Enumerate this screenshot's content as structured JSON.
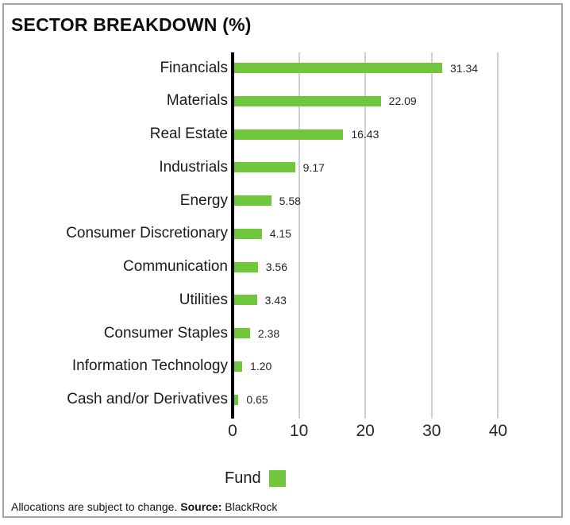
{
  "title": "SECTOR BREAKDOWN (%)",
  "chart_data": {
    "type": "bar",
    "orientation": "horizontal",
    "title": "SECTOR BREAKDOWN (%)",
    "categories": [
      "Financials",
      "Materials",
      "Real Estate",
      "Industrials",
      "Energy",
      "Consumer Discretionary",
      "Communication",
      "Utilities",
      "Consumer Staples",
      "Information Technology",
      "Cash and/or Derivatives"
    ],
    "series": [
      {
        "name": "Fund",
        "values": [
          31.34,
          22.09,
          16.43,
          9.17,
          5.58,
          4.15,
          3.56,
          3.43,
          2.38,
          1.2,
          0.65
        ]
      }
    ],
    "value_labels": [
      "31.34",
      "22.09",
      "16.43",
      "9.17",
      "5.58",
      "4.15",
      "3.56",
      "3.43",
      "2.38",
      "1.20",
      "0.65"
    ],
    "x_ticks": [
      0,
      10,
      20,
      30,
      40
    ],
    "xlim": [
      0,
      50
    ],
    "grid": true,
    "legend_position": "bottom",
    "bar_color": "#70c73c"
  },
  "legend": {
    "label": "Fund",
    "swatch_color": "#70c73c"
  },
  "footer": {
    "text": "Allocations are subject to change. ",
    "source_label": "Source:",
    "source_value": " BlackRock"
  },
  "colors": {
    "bar_green": "#70c73c",
    "axis_black": "#000000",
    "gridline_gray": "#cfcfcf",
    "frame_border": "#a3a3a3"
  }
}
